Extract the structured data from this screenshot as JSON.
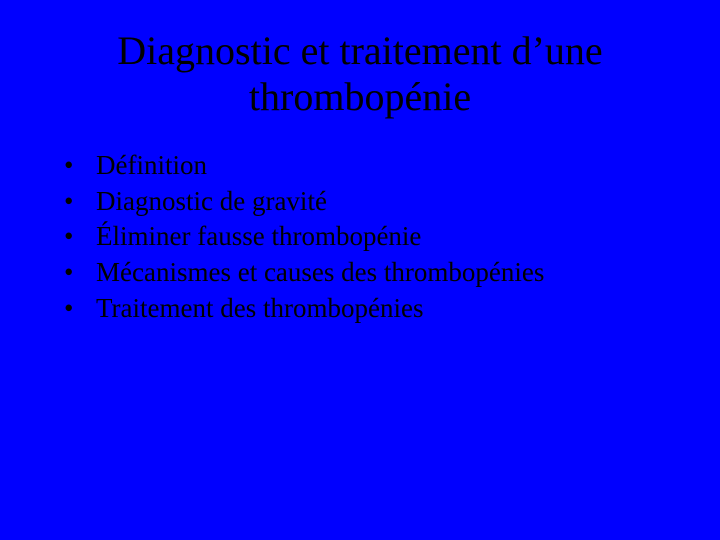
{
  "slide": {
    "background_color": "#0000ff",
    "text_color": "#000000",
    "font_family": "Times New Roman",
    "title": {
      "line1": "Diagnostic et traitement d’une",
      "line2": "thrombopénie",
      "fontsize": 40,
      "align": "center"
    },
    "bullets": {
      "fontsize": 27,
      "marker": "•",
      "items": [
        "Définition",
        "Diagnostic de gravité",
        "Éliminer fausse thrombopénie",
        "Mécanismes et causes des thrombopénies",
        "Traitement des thrombopénies"
      ]
    }
  }
}
